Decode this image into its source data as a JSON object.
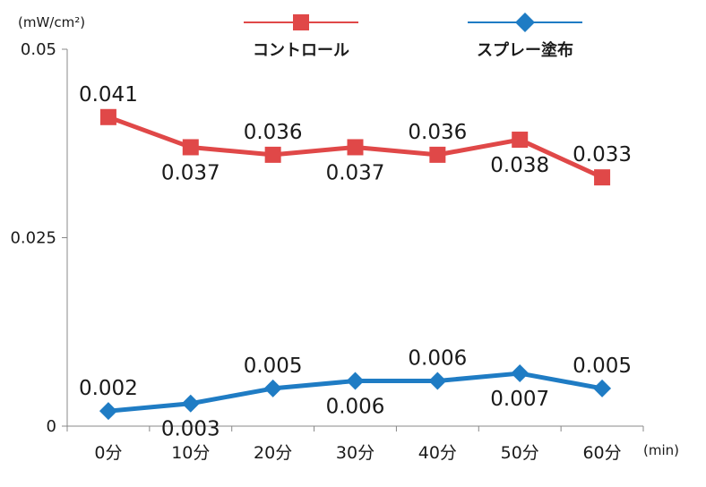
{
  "chart_data": {
    "type": "line",
    "ylabel": "(mW/cm²)",
    "xunit": "(min)",
    "categories": [
      "0分",
      "10分",
      "20分",
      "30分",
      "40分",
      "50分",
      "60分"
    ],
    "ylim": [
      0,
      0.05
    ],
    "yticks": [
      "0",
      "0.025",
      "0.05"
    ],
    "series": [
      {
        "name": "コントロール",
        "color": "#e04848",
        "marker": "square",
        "values": [
          0.041,
          0.037,
          0.036,
          0.037,
          0.036,
          0.038,
          0.033
        ],
        "labels": [
          "0.041",
          "0.037",
          "0.036",
          "0.037",
          "0.036",
          "0.038",
          "0.033"
        ],
        "label_side": [
          "above",
          "below",
          "above",
          "below",
          "above",
          "below",
          "above"
        ]
      },
      {
        "name": "スプレー塗布",
        "color": "#1f7cc4",
        "marker": "diamond",
        "values": [
          0.002,
          0.003,
          0.005,
          0.006,
          0.006,
          0.007,
          0.005
        ],
        "labels": [
          "0.002",
          "0.003",
          "0.005",
          "0.006",
          "0.006",
          "0.007",
          "0.005"
        ],
        "label_side": [
          "above",
          "below",
          "above",
          "below",
          "above",
          "below",
          "above"
        ]
      }
    ],
    "legend_placement": "top",
    "grid": false
  }
}
